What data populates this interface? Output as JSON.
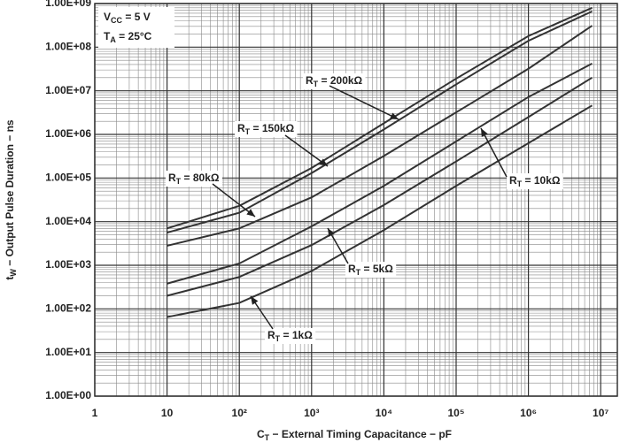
{
  "chart_data": {
    "type": "line",
    "x_label": {
      "sym": "C",
      "sub": "T",
      "text": " − External Timing Capacitance − pF"
    },
    "y_label": {
      "sym": "t",
      "sub": "W",
      "text": " − Output Pulse Duration − ns"
    },
    "conditions": [
      {
        "sym": "V",
        "sub": "CC",
        "text": " = 5 V"
      },
      {
        "sym": "T",
        "sub": "A",
        "text": " = 25°C"
      }
    ],
    "x_log": true,
    "y_log": true,
    "grid": true,
    "minor_grid": true,
    "xlim": [
      1,
      17000000
    ],
    "ylim": [
      1,
      1000000000
    ],
    "xticks": [
      1,
      10,
      {
        "value": 100,
        "label": "10²"
      },
      {
        "value": 1000,
        "label": "10³"
      },
      {
        "value": 10000,
        "label": "10⁴"
      },
      {
        "value": 100000,
        "label": "10⁵"
      },
      {
        "value": 1000000,
        "label": "10⁶"
      },
      {
        "value": 10000000,
        "label": "10⁷"
      }
    ],
    "yticks": [
      {
        "value": 1,
        "label": "1.00E+00"
      },
      {
        "value": 10,
        "label": "1.00E+01"
      },
      {
        "value": 100,
        "label": "1.00E+02"
      },
      {
        "value": 1000,
        "label": "1.00E+03"
      },
      {
        "value": 10000,
        "label": "1.00E+04"
      },
      {
        "value": 100000,
        "label": "1.00E+05"
      },
      {
        "value": 1000000,
        "label": "1.00E+06"
      },
      {
        "value": 10000000,
        "label": "1.00E+07"
      },
      {
        "value": 100000000,
        "label": "1.00E+08"
      },
      {
        "value": 1000000000,
        "label": "1.00E+09"
      }
    ],
    "x": [
      10,
      100,
      1000,
      10000,
      100000,
      1000000,
      7600000
    ],
    "series": [
      {
        "name": {
          "sym": "R",
          "sub": "T",
          "text": " = 200kΩ"
        },
        "color": "#333333",
        "values": [
          7000,
          23000,
          170000,
          1800000,
          19000000,
          180000000,
          800000000
        ]
      },
      {
        "name": {
          "sym": "R",
          "sub": "T",
          "text": " = 150kΩ"
        },
        "color": "#333333",
        "values": [
          5600,
          16000,
          130000,
          1300000,
          14000000,
          140000000,
          660000000
        ]
      },
      {
        "name": {
          "sym": "R",
          "sub": "T",
          "text": " = 80kΩ"
        },
        "color": "#333333",
        "values": [
          2800,
          7000,
          36000,
          320000,
          3200000,
          32000000,
          310000000
        ]
      },
      {
        "name": {
          "sym": "R",
          "sub": "T",
          "text": " = 10kΩ"
        },
        "color": "#333333",
        "values": [
          380,
          1100,
          7800,
          66000,
          690000,
          7200000,
          42000000
        ]
      },
      {
        "name": {
          "sym": "R",
          "sub": "T",
          "text": " = 5kΩ"
        },
        "color": "#333333",
        "values": [
          200,
          540,
          2900,
          24000,
          240000,
          2500000,
          20000000
        ]
      },
      {
        "name": {
          "sym": "R",
          "sub": "T",
          "text": " = 1kΩ"
        },
        "color": "#333333",
        "values": [
          65,
          137,
          740,
          6400,
          66000,
          630000,
          4600000
        ]
      }
    ]
  }
}
